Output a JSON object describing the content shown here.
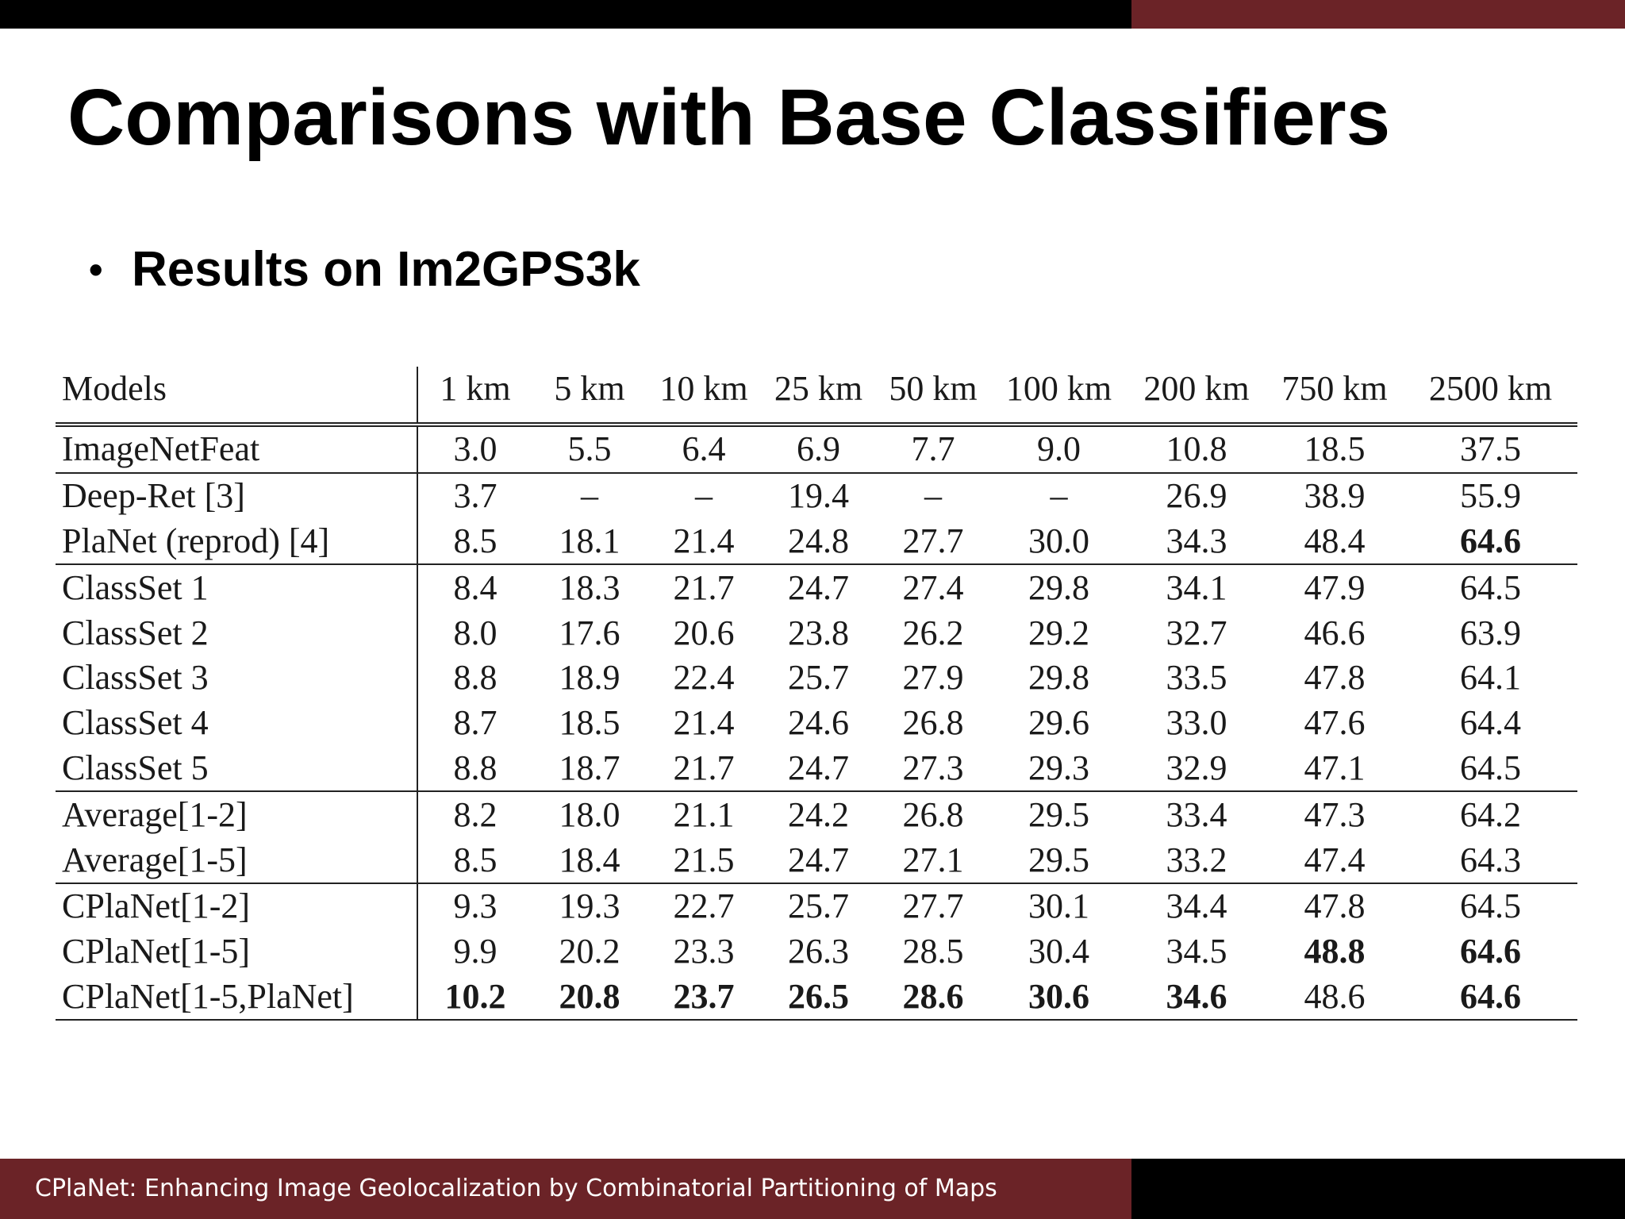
{
  "slide": {
    "title": "Comparisons with Base Classifiers",
    "bullet": "Results on Im2GPS3k",
    "footer": "CPlaNet: Enhancing Image Geolocalization by Combinatorial Partitioning of Maps"
  },
  "colors": {
    "top_bar": "#000000",
    "accent": "#6b2327",
    "footer_bar": "#000000",
    "text": "#000000"
  },
  "table": {
    "header": [
      "Models",
      "1 km",
      "5 km",
      "10 km",
      "25 km",
      "50 km",
      "100 km",
      "200 km",
      "750 km",
      "2500 km"
    ],
    "rows": [
      {
        "model": "ImageNetFeat",
        "values": [
          "3.0",
          "5.5",
          "6.4",
          "6.9",
          "7.7",
          "9.0",
          "10.8",
          "18.5",
          "37.5"
        ],
        "bold": []
      },
      {
        "model": "Deep-Ret [3]",
        "values": [
          "3.7",
          "–",
          "–",
          "19.4",
          "–",
          "–",
          "26.9",
          "38.9",
          "55.9"
        ],
        "bold": []
      },
      {
        "model": "PlaNet (reprod) [4]",
        "values": [
          "8.5",
          "18.1",
          "21.4",
          "24.8",
          "27.7",
          "30.0",
          "34.3",
          "48.4",
          "64.6"
        ],
        "bold": [
          8
        ]
      },
      {
        "model": "ClassSet 1",
        "values": [
          "8.4",
          "18.3",
          "21.7",
          "24.7",
          "27.4",
          "29.8",
          "34.1",
          "47.9",
          "64.5"
        ],
        "bold": []
      },
      {
        "model": "ClassSet 2",
        "values": [
          "8.0",
          "17.6",
          "20.6",
          "23.8",
          "26.2",
          "29.2",
          "32.7",
          "46.6",
          "63.9"
        ],
        "bold": []
      },
      {
        "model": "ClassSet 3",
        "values": [
          "8.8",
          "18.9",
          "22.4",
          "25.7",
          "27.9",
          "29.8",
          "33.5",
          "47.8",
          "64.1"
        ],
        "bold": []
      },
      {
        "model": "ClassSet 4",
        "values": [
          "8.7",
          "18.5",
          "21.4",
          "24.6",
          "26.8",
          "29.6",
          "33.0",
          "47.6",
          "64.4"
        ],
        "bold": []
      },
      {
        "model": "ClassSet 5",
        "values": [
          "8.8",
          "18.7",
          "21.7",
          "24.7",
          "27.3",
          "29.3",
          "32.9",
          "47.1",
          "64.5"
        ],
        "bold": []
      },
      {
        "model": "Average[1-2]",
        "values": [
          "8.2",
          "18.0",
          "21.1",
          "24.2",
          "26.8",
          "29.5",
          "33.4",
          "47.3",
          "64.2"
        ],
        "bold": []
      },
      {
        "model": "Average[1-5]",
        "values": [
          "8.5",
          "18.4",
          "21.5",
          "24.7",
          "27.1",
          "29.5",
          "33.2",
          "47.4",
          "64.3"
        ],
        "bold": []
      },
      {
        "model": "CPlaNet[1-2]",
        "values": [
          "9.3",
          "19.3",
          "22.7",
          "25.7",
          "27.7",
          "30.1",
          "34.4",
          "47.8",
          "64.5"
        ],
        "bold": []
      },
      {
        "model": "CPlaNet[1-5]",
        "values": [
          "9.9",
          "20.2",
          "23.3",
          "26.3",
          "28.5",
          "30.4",
          "34.5",
          "48.8",
          "64.6"
        ],
        "bold": [
          7,
          8
        ]
      },
      {
        "model": "CPlaNet[1-5,PlaNet]",
        "values": [
          "10.2",
          "20.8",
          "23.7",
          "26.5",
          "28.6",
          "30.6",
          "34.6",
          "48.6",
          "64.6"
        ],
        "bold": [
          0,
          1,
          2,
          3,
          4,
          5,
          6,
          8
        ]
      }
    ]
  }
}
